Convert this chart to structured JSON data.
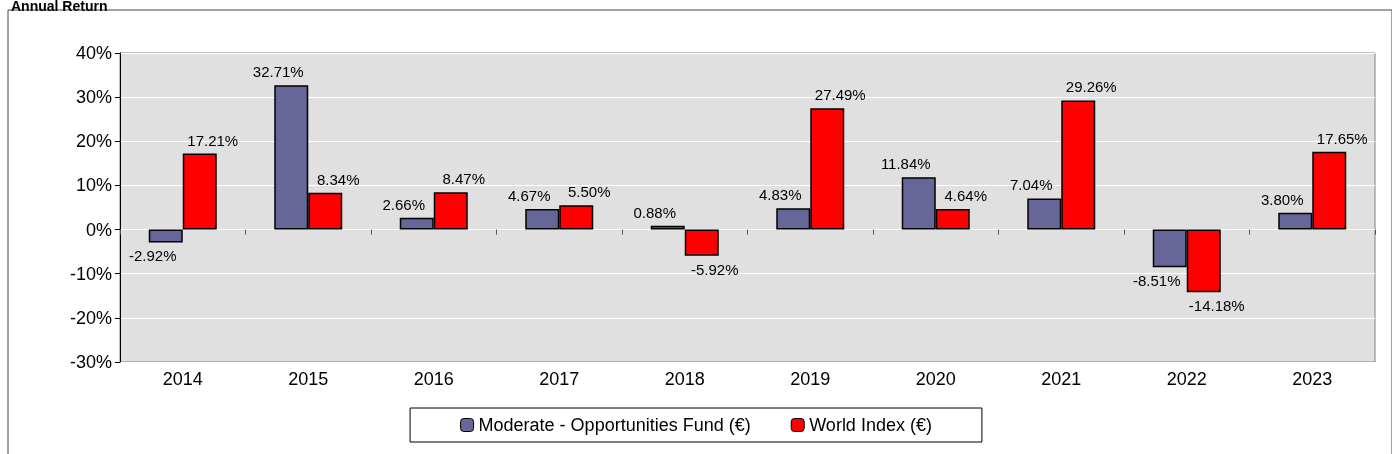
{
  "chart_data": {
    "type": "bar",
    "title": "Annual Return",
    "categories": [
      "2014",
      "2015",
      "2016",
      "2017",
      "2018",
      "2019",
      "2020",
      "2021",
      "2022",
      "2023"
    ],
    "series": [
      {
        "name": "Moderate - Opportunities Fund (€)",
        "color": "#666699",
        "values": [
          -2.92,
          32.71,
          2.66,
          4.67,
          0.88,
          4.83,
          11.84,
          7.04,
          -8.51,
          3.8
        ],
        "value_labels": [
          "-2.92%",
          "32.71%",
          "2.66%",
          "4.67%",
          "0.88%",
          "4.83%",
          "11.84%",
          "7.04%",
          "-8.51%",
          "3.80%"
        ]
      },
      {
        "name": "World Index (€)",
        "color": "#ff0000",
        "values": [
          17.21,
          8.34,
          8.47,
          5.5,
          -5.92,
          27.49,
          4.64,
          29.26,
          -14.18,
          17.65
        ],
        "value_labels": [
          "17.21%",
          "8.34%",
          "8.47%",
          "5.50%",
          "-5.92%",
          "27.49%",
          "4.64%",
          "29.26%",
          "-14.18%",
          "17.65%"
        ]
      }
    ],
    "ylim": [
      -30,
      40
    ],
    "yticks": [
      {
        "value": -30,
        "label": "-30%"
      },
      {
        "value": -20,
        "label": "-20%"
      },
      {
        "value": -10,
        "label": "-10%"
      },
      {
        "value": 0,
        "label": "0%"
      },
      {
        "value": 10,
        "label": "10%"
      },
      {
        "value": 20,
        "label": "20%"
      },
      {
        "value": 30,
        "label": "30%"
      },
      {
        "value": 40,
        "label": "40%"
      }
    ],
    "grid": "y",
    "legend": "bottom"
  }
}
